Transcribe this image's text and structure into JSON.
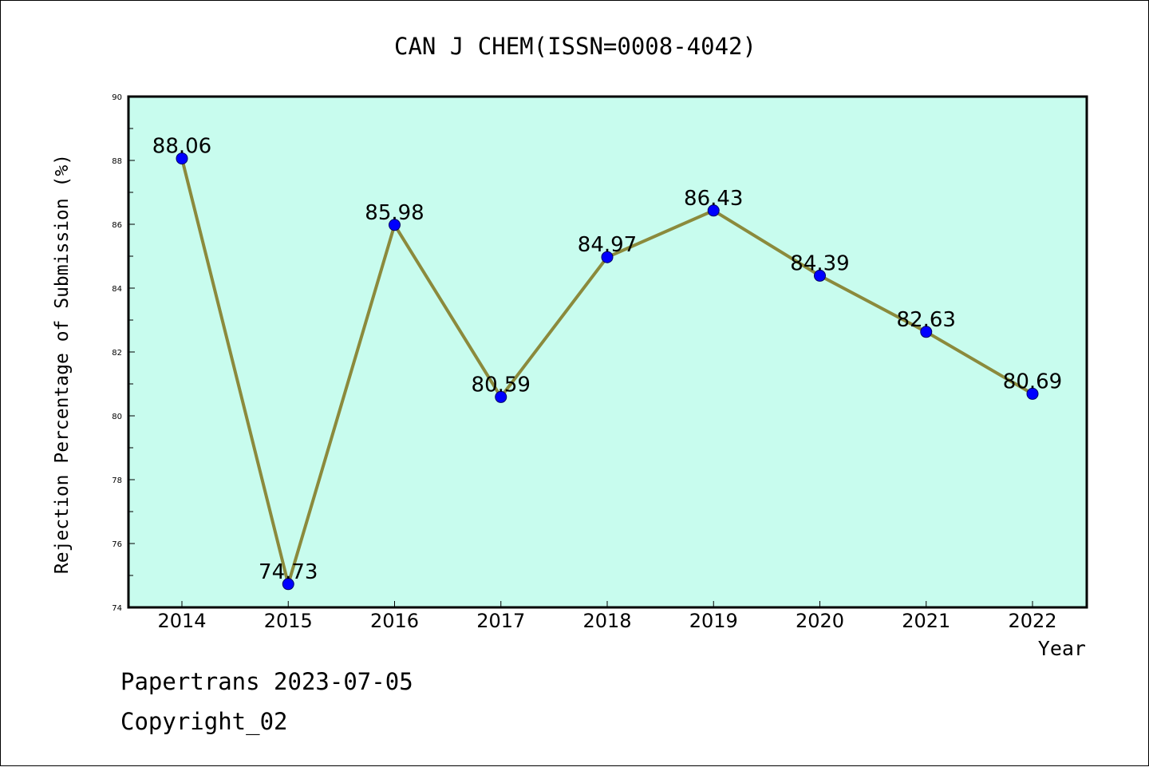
{
  "chart_data": {
    "type": "line",
    "title": "CAN J CHEM(ISSN=0008-4042)",
    "xlabel": "Year",
    "ylabel": "Rejection Percentage of Submission (%)",
    "categories": [
      "2014",
      "2015",
      "2016",
      "2017",
      "2018",
      "2019",
      "2020",
      "2021",
      "2022"
    ],
    "values": [
      88.06,
      74.73,
      85.98,
      80.59,
      84.97,
      86.43,
      84.39,
      82.63,
      80.69
    ],
    "data_labels": [
      "88.06",
      "74.73",
      "85.98",
      "80.59",
      "84.97",
      "86.43",
      "84.39",
      "82.63",
      "80.69"
    ],
    "ylim": [
      74,
      90
    ],
    "yticks": [
      "74",
      "76",
      "78",
      "80",
      "82",
      "84",
      "86",
      "88",
      "90"
    ],
    "grid": false,
    "colors": {
      "plot_background": "#c8fcee",
      "line": "#8b8a3c",
      "marker": "#0000ff"
    }
  },
  "footer": {
    "line1": "Papertrans 2023-07-05",
    "line2": "Copyright_02"
  }
}
